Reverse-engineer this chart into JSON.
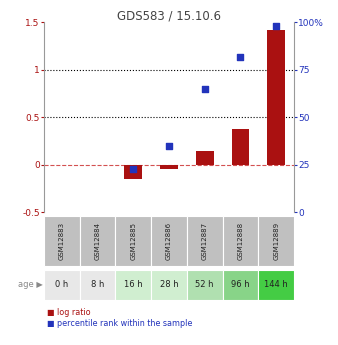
{
  "title": "GDS583 / 15.10.6",
  "samples": [
    "GSM12883",
    "GSM12884",
    "GSM12885",
    "GSM12886",
    "GSM12887",
    "GSM12888",
    "GSM12889"
  ],
  "ages": [
    "0 h",
    "8 h",
    "16 h",
    "28 h",
    "52 h",
    "96 h",
    "144 h"
  ],
  "log_ratio": [
    0.0,
    0.0,
    -0.15,
    -0.05,
    0.15,
    0.38,
    1.42
  ],
  "percentile_rank_pct": [
    null,
    null,
    23.0,
    35.0,
    65.0,
    82.0,
    98.0
  ],
  "ylim_left": [
    -0.5,
    1.5
  ],
  "ylim_right": [
    0,
    100
  ],
  "yticks_left": [
    -0.5,
    0.0,
    0.5,
    1.0,
    1.5
  ],
  "ytick_labels_left": [
    "-0.5",
    "0",
    "0.5",
    "1",
    "1.5"
  ],
  "yticks_right": [
    0,
    25,
    50,
    75,
    100
  ],
  "ytick_labels_right": [
    "0",
    "25",
    "50",
    "75",
    "100%"
  ],
  "hlines_dotted": [
    0.5,
    1.0
  ],
  "hline_dashed": 0.0,
  "bar_color": "#aa1111",
  "square_color": "#2233bb",
  "age_colors": [
    "#e8e8e8",
    "#e8e8e8",
    "#d0eed0",
    "#d0eed0",
    "#b0e0b0",
    "#88d488",
    "#44cc44"
  ],
  "sample_bg_color": "#c0c0c0",
  "legend_items": [
    "log ratio",
    "percentile rank within the sample"
  ],
  "legend_colors": [
    "#aa1111",
    "#2233bb"
  ],
  "bar_width": 0.5,
  "square_size": 18,
  "age_label": "age"
}
